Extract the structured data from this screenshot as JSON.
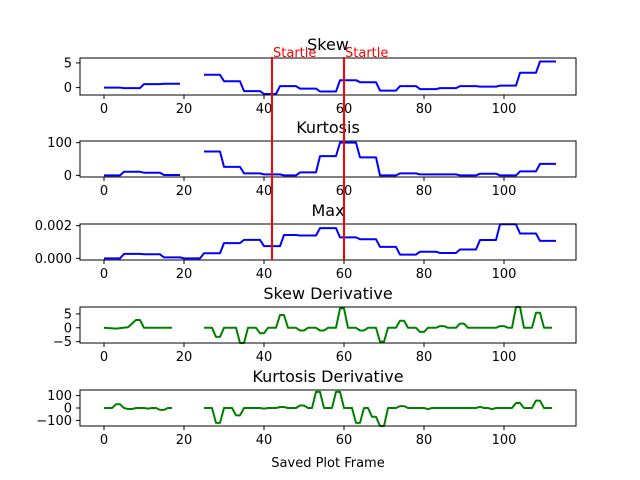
{
  "chart_data": [
    {
      "type": "line",
      "title": "Skew",
      "xlabel": "",
      "ylabel": "",
      "xlim": [
        -6,
        118
      ],
      "ylim": [
        -1.5,
        6
      ],
      "xticks": [
        0,
        20,
        40,
        60,
        80,
        100
      ],
      "yticks": [
        0,
        5
      ],
      "color": "#0000ff",
      "segments": [
        [
          [
            0,
            0.0
          ],
          [
            4,
            0.0
          ],
          [
            5,
            -0.1
          ],
          [
            9,
            -0.1
          ],
          [
            10,
            0.7
          ],
          [
            14,
            0.7
          ],
          [
            15,
            0.8
          ],
          [
            19,
            0.8
          ]
        ],
        [
          [
            25,
            2.6
          ],
          [
            29,
            2.6
          ],
          [
            30,
            1.3
          ],
          [
            34,
            1.3
          ],
          [
            35,
            -0.7
          ],
          [
            39,
            -0.7
          ],
          [
            40,
            -1.3
          ],
          [
            43,
            -1.3
          ],
          [
            44,
            0.3
          ],
          [
            48,
            0.3
          ],
          [
            49,
            -0.2
          ],
          [
            53,
            -0.2
          ],
          [
            54,
            -0.8
          ],
          [
            58,
            -0.8
          ],
          [
            59,
            1.5
          ],
          [
            63,
            1.5
          ],
          [
            64,
            1.1
          ],
          [
            68,
            1.1
          ],
          [
            69,
            -0.6
          ],
          [
            73,
            -0.6
          ],
          [
            74,
            0.3
          ],
          [
            78,
            0.3
          ],
          [
            79,
            -0.3
          ],
          [
            83,
            -0.3
          ],
          [
            84,
            -0.1
          ],
          [
            88,
            -0.1
          ],
          [
            89,
            0.3
          ],
          [
            93,
            0.3
          ],
          [
            94,
            0.2
          ],
          [
            98,
            0.2
          ],
          [
            99,
            0.4
          ],
          [
            103,
            0.4
          ],
          [
            104,
            3.0
          ],
          [
            108,
            3.0
          ],
          [
            109,
            5.3
          ],
          [
            113,
            5.3
          ]
        ]
      ],
      "events": [
        {
          "x": 42,
          "label": "Startle"
        },
        {
          "x": 60,
          "label": "Startle"
        }
      ]
    },
    {
      "type": "line",
      "title": "Kurtosis",
      "xlabel": "",
      "ylabel": "",
      "xlim": [
        -6,
        118
      ],
      "ylim": [
        -5,
        105
      ],
      "xticks": [
        0,
        20,
        40,
        60,
        80,
        100
      ],
      "yticks": [
        0,
        100
      ],
      "color": "#0000ff",
      "segments": [
        [
          [
            0,
            0
          ],
          [
            4,
            0
          ],
          [
            5,
            11
          ],
          [
            9,
            11
          ],
          [
            10,
            8
          ],
          [
            14,
            8
          ],
          [
            15,
            1
          ],
          [
            19,
            1
          ]
        ],
        [
          [
            25,
            73
          ],
          [
            29,
            73
          ],
          [
            30,
            26
          ],
          [
            34,
            26
          ],
          [
            35,
            6
          ],
          [
            39,
            6
          ],
          [
            40,
            3
          ],
          [
            44,
            3
          ],
          [
            45,
            0
          ],
          [
            48,
            0
          ],
          [
            49,
            9
          ],
          [
            53,
            9
          ],
          [
            54,
            59
          ],
          [
            58,
            59
          ],
          [
            59,
            100
          ],
          [
            63,
            100
          ],
          [
            64,
            55
          ],
          [
            68,
            55
          ],
          [
            69,
            0
          ],
          [
            73,
            0
          ],
          [
            74,
            6
          ],
          [
            78,
            6
          ],
          [
            79,
            3
          ],
          [
            88,
            3
          ],
          [
            89,
            0
          ],
          [
            93,
            0
          ],
          [
            94,
            5
          ],
          [
            98,
            5
          ],
          [
            99,
            0
          ],
          [
            103,
            0
          ],
          [
            104,
            12
          ],
          [
            108,
            12
          ],
          [
            109,
            35
          ],
          [
            113,
            35
          ]
        ]
      ],
      "events": [
        {
          "x": 42,
          "label": ""
        },
        {
          "x": 60,
          "label": ""
        }
      ]
    },
    {
      "type": "line",
      "title": "Max",
      "xlabel": "",
      "ylabel": "",
      "xlim": [
        -6,
        118
      ],
      "ylim": [
        -0.0001,
        0.0021
      ],
      "xticks": [
        0,
        20,
        40,
        60,
        80,
        100
      ],
      "yticks": [
        0.0,
        0.002
      ],
      "ytick_labels": [
        "0.000",
        "0.002"
      ],
      "color": "#0000ff",
      "segments": [
        [
          [
            0,
            0.0
          ],
          [
            4,
            0.0
          ],
          [
            5,
            0.00027
          ],
          [
            9,
            0.00027
          ],
          [
            10,
            0.00025
          ],
          [
            14,
            0.00025
          ],
          [
            15,
            6e-05
          ],
          [
            19,
            6e-05
          ],
          [
            20,
            0.0
          ],
          [
            24,
            0.0
          ],
          [
            25,
            0.00031
          ],
          [
            29,
            0.00031
          ],
          [
            30,
            0.00093
          ],
          [
            34,
            0.00093
          ],
          [
            35,
            0.00113
          ],
          [
            39,
            0.00113
          ],
          [
            40,
            0.00075
          ],
          [
            44,
            0.00075
          ],
          [
            45,
            0.00143
          ],
          [
            48,
            0.00143
          ],
          [
            49,
            0.0014
          ],
          [
            53,
            0.0014
          ],
          [
            54,
            0.00185
          ],
          [
            58,
            0.00185
          ],
          [
            59,
            0.00128
          ],
          [
            63,
            0.00128
          ],
          [
            64,
            0.00117
          ],
          [
            68,
            0.00117
          ],
          [
            69,
            0.0007
          ],
          [
            73,
            0.0007
          ],
          [
            74,
            0.00023
          ],
          [
            78,
            0.00023
          ],
          [
            79,
            0.00041
          ],
          [
            83,
            0.00041
          ],
          [
            84,
            0.00033
          ],
          [
            88,
            0.00033
          ],
          [
            89,
            0.00054
          ],
          [
            93,
            0.00054
          ],
          [
            94,
            0.00112
          ],
          [
            98,
            0.00112
          ],
          [
            99,
            0.00208
          ],
          [
            103,
            0.00208
          ],
          [
            104,
            0.00152
          ],
          [
            108,
            0.00152
          ],
          [
            109,
            0.00107
          ],
          [
            113,
            0.00107
          ]
        ]
      ],
      "events": [
        {
          "x": 42,
          "label": ""
        },
        {
          "x": 60,
          "label": ""
        }
      ]
    },
    {
      "type": "line",
      "title": "Skew Derivative",
      "xlabel": "",
      "ylabel": "",
      "xlim": [
        -6,
        118
      ],
      "ylim": [
        -5.5,
        7.5
      ],
      "xticks": [
        0,
        20,
        40,
        60,
        80,
        100
      ],
      "yticks": [
        -5,
        0,
        5
      ],
      "color": "#008000",
      "segments": [
        [
          [
            0,
            0
          ],
          [
            3,
            -0.3
          ],
          [
            6,
            0.2
          ],
          [
            8,
            2.8
          ],
          [
            9,
            2.8
          ],
          [
            10,
            0
          ],
          [
            13,
            0
          ],
          [
            16,
            0
          ],
          [
            17,
            0
          ]
        ],
        [
          [
            25,
            0
          ],
          [
            27,
            0
          ],
          [
            28,
            -3.3
          ],
          [
            29,
            -3.3
          ],
          [
            30,
            0
          ],
          [
            33,
            0
          ],
          [
            34,
            -5.5
          ],
          [
            35,
            -5.5
          ],
          [
            36,
            0
          ],
          [
            38,
            0
          ],
          [
            39,
            -2.0
          ],
          [
            40,
            -2.0
          ],
          [
            41,
            0
          ],
          [
            43,
            0
          ],
          [
            44,
            4.6
          ],
          [
            45,
            4.6
          ],
          [
            46,
            0
          ],
          [
            48,
            0
          ],
          [
            49,
            -1.0
          ],
          [
            50,
            -1.0
          ],
          [
            51,
            0
          ],
          [
            53,
            0
          ],
          [
            54,
            -1.0
          ],
          [
            55,
            -1.0
          ],
          [
            56,
            0
          ],
          [
            58,
            0
          ],
          [
            59,
            7.0
          ],
          [
            60,
            7.0
          ],
          [
            61,
            0
          ],
          [
            63,
            0
          ],
          [
            64,
            -1.0
          ],
          [
            65,
            -1.0
          ],
          [
            66,
            0
          ],
          [
            68,
            0
          ],
          [
            69,
            -5.0
          ],
          [
            70,
            -5.0
          ],
          [
            71,
            0
          ],
          [
            73,
            0
          ],
          [
            74,
            2.5
          ],
          [
            75,
            2.5
          ],
          [
            76,
            0
          ],
          [
            78,
            0
          ],
          [
            79,
            -1.5
          ],
          [
            80,
            -1.5
          ],
          [
            81,
            0
          ],
          [
            83,
            0
          ],
          [
            84,
            0.6
          ],
          [
            85,
            0.6
          ],
          [
            86,
            0
          ],
          [
            88,
            0
          ],
          [
            89,
            1.5
          ],
          [
            90,
            1.5
          ],
          [
            91,
            0
          ],
          [
            98,
            0
          ],
          [
            99,
            0.6
          ],
          [
            100,
            0.6
          ],
          [
            101,
            0
          ],
          [
            102,
            0
          ],
          [
            103,
            7.5
          ],
          [
            104,
            7.5
          ],
          [
            105,
            0
          ],
          [
            107,
            0
          ],
          [
            108,
            5.4
          ],
          [
            109,
            5.4
          ],
          [
            110,
            0
          ],
          [
            112,
            0
          ]
        ]
      ],
      "events": []
    },
    {
      "type": "line",
      "title": "Kurtosis Derivative",
      "xlabel": "Saved Plot Frame",
      "ylabel": "",
      "xlim": [
        -6,
        118
      ],
      "ylim": [
        -145,
        145
      ],
      "xticks": [
        0,
        20,
        40,
        60,
        80,
        100
      ],
      "yticks": [
        -100,
        0,
        100
      ],
      "ytick_labels": [
        "−100",
        "0",
        "100"
      ],
      "color": "#008000",
      "segments": [
        [
          [
            0,
            0
          ],
          [
            2,
            0
          ],
          [
            3,
            30
          ],
          [
            4,
            30
          ],
          [
            5,
            0
          ],
          [
            6,
            -8
          ],
          [
            7,
            -8
          ],
          [
            8,
            0
          ],
          [
            10,
            0
          ],
          [
            11,
            -5
          ],
          [
            12,
            0
          ],
          [
            13,
            0
          ],
          [
            14,
            -15
          ],
          [
            15,
            -15
          ],
          [
            16,
            0
          ],
          [
            17,
            0
          ]
        ],
        [
          [
            25,
            0
          ],
          [
            27,
            0
          ],
          [
            28,
            -120
          ],
          [
            29,
            -120
          ],
          [
            30,
            0
          ],
          [
            32,
            0
          ],
          [
            33,
            -60
          ],
          [
            34,
            -60
          ],
          [
            35,
            0
          ],
          [
            39,
            0
          ],
          [
            40,
            -5
          ],
          [
            41,
            0
          ],
          [
            43,
            0
          ],
          [
            44,
            8
          ],
          [
            45,
            8
          ],
          [
            46,
            0
          ],
          [
            48,
            0
          ],
          [
            49,
            20
          ],
          [
            50,
            20
          ],
          [
            51,
            0
          ],
          [
            52,
            0
          ],
          [
            53,
            130
          ],
          [
            54,
            130
          ],
          [
            55,
            0
          ],
          [
            57,
            0
          ],
          [
            58,
            130
          ],
          [
            59,
            130
          ],
          [
            60,
            0
          ],
          [
            62,
            0
          ],
          [
            63,
            -120
          ],
          [
            64,
            -120
          ],
          [
            65,
            0
          ],
          [
            66,
            0
          ],
          [
            67,
            -70
          ],
          [
            68,
            -70
          ],
          [
            69,
            -145
          ],
          [
            70,
            -145
          ],
          [
            71,
            0
          ],
          [
            73,
            0
          ],
          [
            74,
            15
          ],
          [
            75,
            15
          ],
          [
            76,
            0
          ],
          [
            80,
            0
          ],
          [
            81,
            -10
          ],
          [
            82,
            0
          ],
          [
            88,
            0
          ],
          [
            89,
            0
          ],
          [
            93,
            0
          ],
          [
            94,
            10
          ],
          [
            95,
            0
          ],
          [
            96,
            0
          ],
          [
            97,
            -10
          ],
          [
            98,
            0
          ],
          [
            102,
            0
          ],
          [
            103,
            40
          ],
          [
            104,
            40
          ],
          [
            105,
            0
          ],
          [
            107,
            0
          ],
          [
            108,
            60
          ],
          [
            109,
            60
          ],
          [
            110,
            0
          ],
          [
            112,
            0
          ]
        ]
      ],
      "events": []
    }
  ],
  "event_color": "#ff0000"
}
